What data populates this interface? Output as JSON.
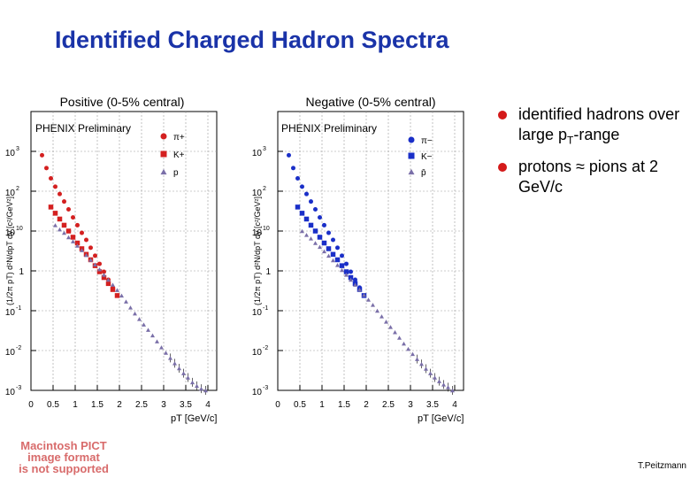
{
  "title": "Identified Charged Hadron Spectra",
  "bullets": [
    {
      "pre": "identified hadrons over large p",
      "sub": "T",
      "post": "-range"
    },
    {
      "pre": "protons ≈ pions at 2 GeV/c",
      "sub": "",
      "post": ""
    }
  ],
  "pict_notice": [
    "Macintosh PICT",
    "image format",
    "is not supported"
  ],
  "author": "T.Peitzmann",
  "chart_data": [
    {
      "type": "scatter",
      "title": "Positive (0-5% central)",
      "watermark": "PHENIX Preliminary",
      "ylabel": "(1/2π pT) d²N/dpT dy [c²/GeV²]",
      "xlabel": "pT [GeV/c]",
      "xlim": [
        0,
        4.2
      ],
      "ylim_log10": [
        -3,
        4
      ],
      "xticks": [
        "0",
        "0.5",
        "1",
        "1.5",
        "2",
        "2.5",
        "3",
        "3.5",
        "4"
      ],
      "yticks": [
        "10^-3",
        "10^-2",
        "10^-1",
        "1",
        "10",
        "10^2",
        "10^3"
      ],
      "series": [
        {
          "name": "π+",
          "marker": "circle",
          "color": "#d42020",
          "x": [
            0.25,
            0.35,
            0.45,
            0.55,
            0.65,
            0.75,
            0.85,
            0.95,
            1.05,
            1.15,
            1.25,
            1.35,
            1.45,
            1.55,
            1.65,
            1.75,
            1.85,
            1.95
          ],
          "y": [
            800,
            380,
            210,
            130,
            85,
            55,
            35,
            22,
            14,
            9,
            6,
            3.8,
            2.4,
            1.5,
            0.95,
            0.6,
            0.38,
            0.24
          ]
        },
        {
          "name": "K+",
          "marker": "square",
          "color": "#d42020",
          "x": [
            0.45,
            0.55,
            0.65,
            0.75,
            0.85,
            0.95,
            1.05,
            1.15,
            1.25,
            1.35,
            1.45,
            1.55,
            1.65,
            1.75,
            1.85,
            1.95
          ],
          "y": [
            40,
            28,
            20,
            14,
            10,
            7,
            5,
            3.6,
            2.6,
            1.9,
            1.35,
            0.95,
            0.68,
            0.48,
            0.34,
            0.24
          ]
        },
        {
          "name": "p",
          "marker": "triangle",
          "color": "#7a6fa8",
          "x": [
            0.55,
            0.65,
            0.75,
            0.85,
            0.95,
            1.05,
            1.15,
            1.25,
            1.35,
            1.45,
            1.55,
            1.65,
            1.75,
            1.85,
            1.95,
            2.05,
            2.15,
            2.25,
            2.35,
            2.45,
            2.55,
            2.65,
            2.75,
            2.85,
            2.95,
            3.05,
            3.15,
            3.25,
            3.35,
            3.45,
            3.55,
            3.65,
            3.75,
            3.85,
            3.95
          ],
          "y": [
            14,
            11,
            9,
            7,
            5.5,
            4.3,
            3.3,
            2.5,
            1.9,
            1.45,
            1.1,
            0.8,
            0.6,
            0.45,
            0.33,
            0.24,
            0.17,
            0.12,
            0.085,
            0.062,
            0.045,
            0.033,
            0.024,
            0.017,
            0.012,
            0.0088,
            0.0065,
            0.0048,
            0.0036,
            0.0027,
            0.0021,
            0.0016,
            0.0013,
            0.0011,
            0.001
          ]
        }
      ]
    },
    {
      "type": "scatter",
      "title": "Negative (0-5% central)",
      "watermark": "PHENIX Preliminary",
      "ylabel": "(1/2π pT) d²N/dpT dy [c²/GeV²]",
      "xlabel": "pT [GeV/c]",
      "xlim": [
        0,
        4.2
      ],
      "ylim_log10": [
        -3,
        4
      ],
      "xticks": [
        "0",
        "0.5",
        "1",
        "1.5",
        "2",
        "2.5",
        "3",
        "3.5",
        "4"
      ],
      "yticks": [
        "10^-3",
        "10^-2",
        "10^-1",
        "1",
        "10",
        "10^2",
        "10^3"
      ],
      "series": [
        {
          "name": "π−",
          "marker": "circle",
          "color": "#1a2fc8",
          "x": [
            0.25,
            0.35,
            0.45,
            0.55,
            0.65,
            0.75,
            0.85,
            0.95,
            1.05,
            1.15,
            1.25,
            1.35,
            1.45,
            1.55,
            1.65,
            1.75,
            1.85,
            1.95
          ],
          "y": [
            800,
            380,
            210,
            130,
            85,
            55,
            35,
            22,
            14,
            9,
            6,
            3.8,
            2.4,
            1.5,
            0.95,
            0.6,
            0.38,
            0.24
          ]
        },
        {
          "name": "K−",
          "marker": "square",
          "color": "#1a2fc8",
          "x": [
            0.45,
            0.55,
            0.65,
            0.75,
            0.85,
            0.95,
            1.05,
            1.15,
            1.25,
            1.35,
            1.45,
            1.55,
            1.65,
            1.75,
            1.85,
            1.95
          ],
          "y": [
            40,
            28,
            20,
            14,
            10,
            7,
            5,
            3.6,
            2.6,
            1.9,
            1.35,
            0.95,
            0.68,
            0.48,
            0.34,
            0.24
          ]
        },
        {
          "name": "p̄",
          "marker": "triangle",
          "color": "#7a6fa8",
          "x": [
            0.55,
            0.65,
            0.75,
            0.85,
            0.95,
            1.05,
            1.15,
            1.25,
            1.35,
            1.45,
            1.55,
            1.65,
            1.75,
            1.85,
            1.95,
            2.05,
            2.15,
            2.25,
            2.35,
            2.45,
            2.55,
            2.65,
            2.75,
            2.85,
            2.95,
            3.05,
            3.15,
            3.25,
            3.35,
            3.45,
            3.55,
            3.65,
            3.75,
            3.85,
            3.95
          ],
          "y": [
            10,
            8,
            6.5,
            5,
            4,
            3.1,
            2.4,
            1.85,
            1.4,
            1.05,
            0.8,
            0.6,
            0.45,
            0.34,
            0.25,
            0.19,
            0.14,
            0.1,
            0.072,
            0.053,
            0.039,
            0.029,
            0.021,
            0.015,
            0.011,
            0.0082,
            0.0061,
            0.0046,
            0.0035,
            0.0027,
            0.0021,
            0.0017,
            0.0014,
            0.0012,
            0.001
          ]
        }
      ]
    }
  ]
}
